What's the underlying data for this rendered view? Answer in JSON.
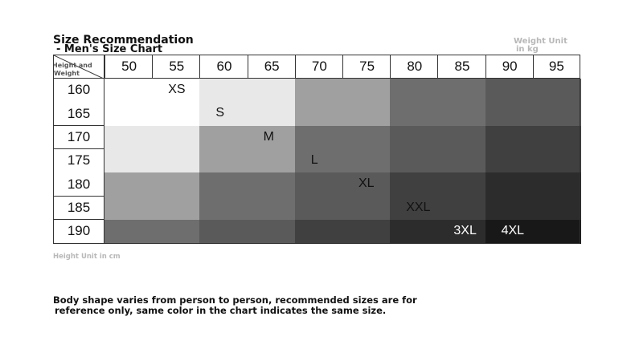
{
  "title": "Size Recommendation",
  "subtitle": "- Men's Size Chart",
  "weight_unit_line1": "Weight Unit",
  "weight_unit_line2": "in kg",
  "corner_label_line1": "Height and",
  "corner_label_line2": "Weight",
  "weights": [
    "50",
    "55",
    "60",
    "65",
    "70",
    "75",
    "80",
    "85",
    "90",
    "95"
  ],
  "heights": [
    "160",
    "165",
    "170",
    "175",
    "180",
    "185",
    "190"
  ],
  "height_unit": "Height Unit in cm",
  "note_line1": "Body shape varies from person to person, recommended sizes are for",
  "note_line2": "reference only, same color in the chart indicates the same size.",
  "size_colors": {
    "XS": "#ffffff",
    "S": "#e8e8e8",
    "M": "#a0a0a0",
    "L": "#6e6e6e",
    "XL": "#5a5a5a",
    "XXL": "#404040",
    "3XL": "#2c2c2c",
    "4XL": "#181818"
  },
  "size_grid": [
    [
      "XS",
      "XS",
      "S",
      "S",
      "M",
      "M",
      "L",
      "L",
      "XL",
      "XL"
    ],
    [
      "XS",
      "XS",
      "S",
      "S",
      "M",
      "M",
      "L",
      "L",
      "XL",
      "XL"
    ],
    [
      "S",
      "S",
      "M",
      "M",
      "L",
      "L",
      "XL",
      "XL",
      "XXL",
      "XXL"
    ],
    [
      "S",
      "S",
      "M",
      "M",
      "L",
      "L",
      "XL",
      "XL",
      "XXL",
      "XXL"
    ],
    [
      "M",
      "M",
      "L",
      "L",
      "XL",
      "XL",
      "XXL",
      "XXL",
      "3XL",
      "3XL"
    ],
    [
      "M",
      "M",
      "L",
      "L",
      "XL",
      "XL",
      "XXL",
      "XXL",
      "3XL",
      "3XL"
    ],
    [
      "L",
      "L",
      "XL",
      "XL",
      "XXL",
      "XXL",
      "3XL",
      "3XL",
      "4XL",
      "4XL"
    ]
  ],
  "size_labels": [
    {
      "text": "XS",
      "row": 0,
      "col": 1
    },
    {
      "text": "S",
      "row": 1,
      "col": 2
    },
    {
      "text": "M",
      "row": 2,
      "col": 3
    },
    {
      "text": "L",
      "row": 3,
      "col": 4
    },
    {
      "text": "XL",
      "row": 4,
      "col": 5
    },
    {
      "text": "XXL",
      "row": 5,
      "col": 6
    },
    {
      "text": "3XL",
      "row": 6,
      "col": 7
    },
    {
      "text": "4XL",
      "row": 6,
      "col": 8
    }
  ]
}
